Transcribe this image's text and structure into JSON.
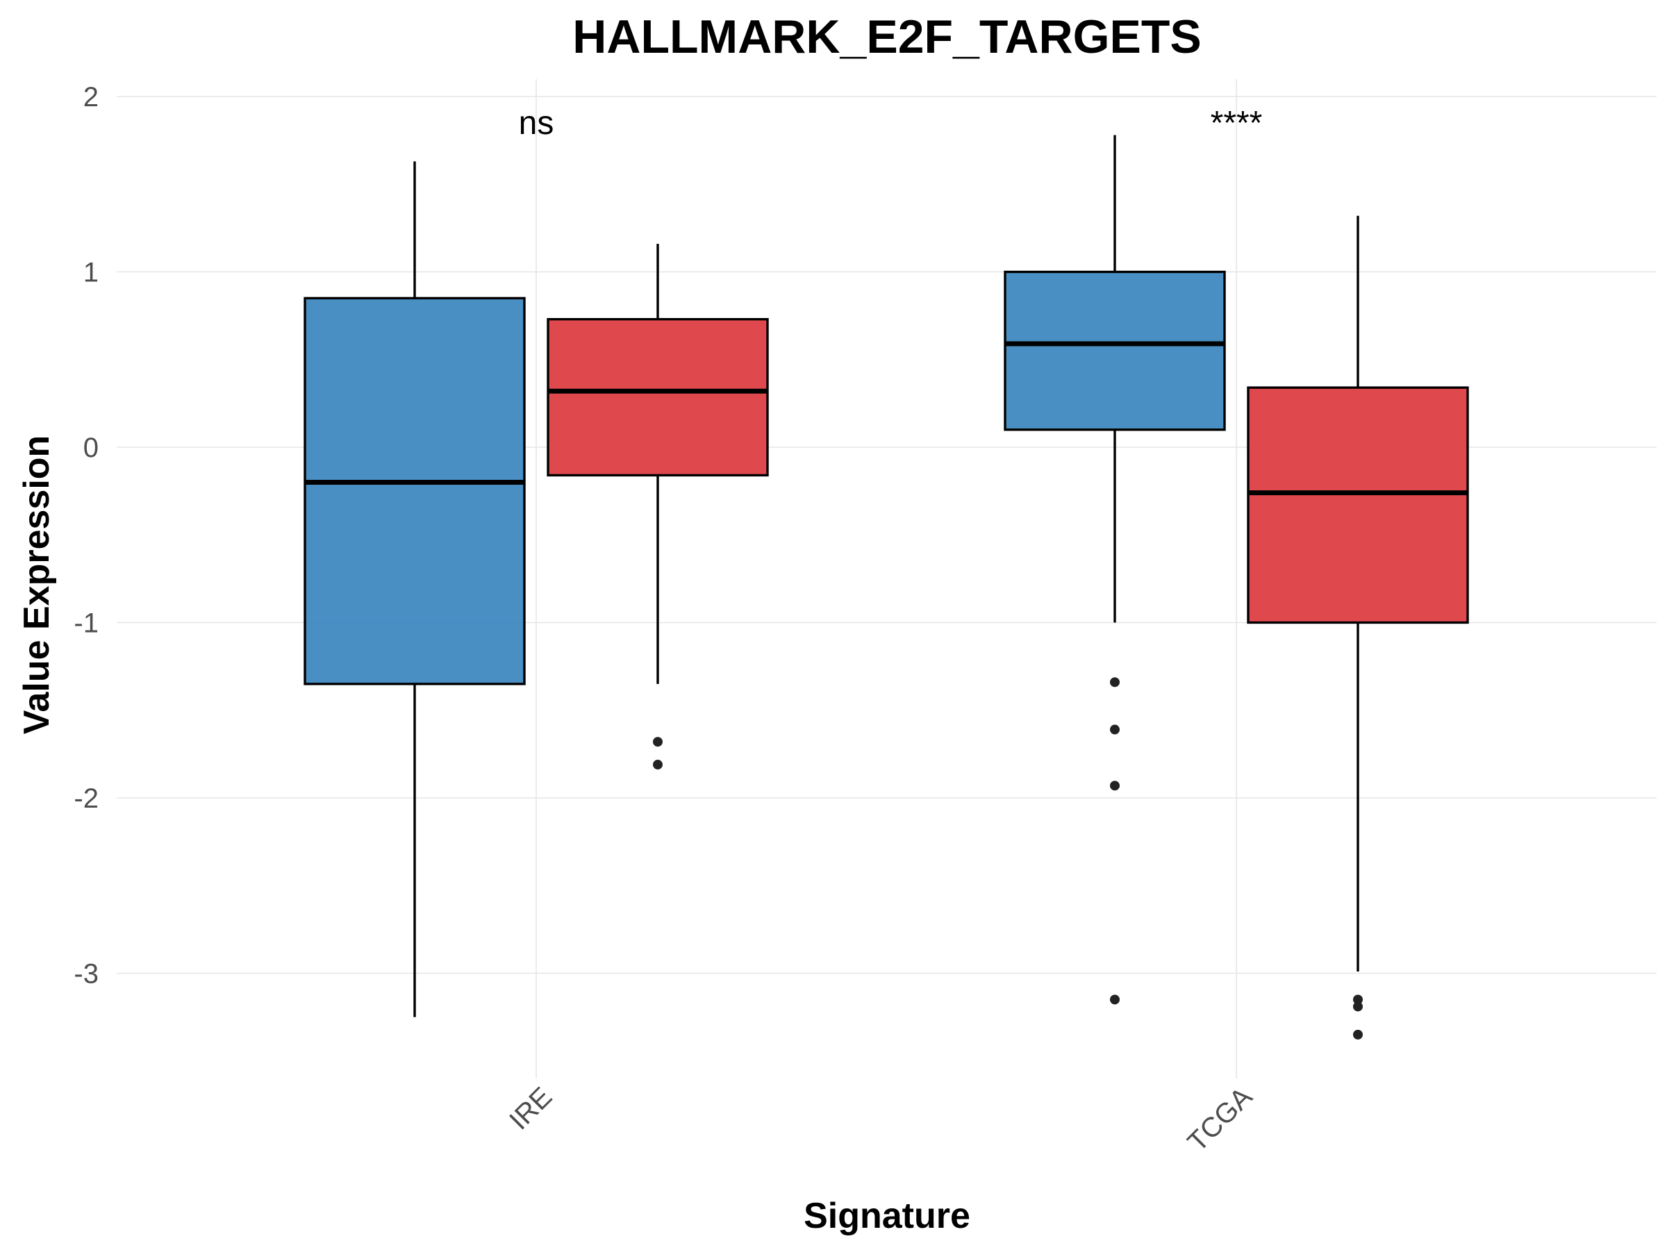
{
  "chart_data": {
    "type": "box",
    "title": "HALLMARK_E2F_TARGETS",
    "xlabel": "Signature",
    "ylabel": "Value Expression",
    "categories": [
      "IRE",
      "TCGA"
    ],
    "y_ticks": [
      2,
      1,
      0,
      -1,
      -2,
      -3
    ],
    "ylim": [
      -3.6,
      2.1
    ],
    "grid": true,
    "legend": "none",
    "groups": [
      {
        "color": "#3a86bf"
      },
      {
        "color": "#dc3a3e"
      }
    ],
    "boxes": [
      {
        "category": "IRE",
        "group": 0,
        "whisker_low": -3.25,
        "q1": -1.35,
        "median": -0.2,
        "q3": 0.85,
        "whisker_high": 1.63,
        "outliers": []
      },
      {
        "category": "IRE",
        "group": 1,
        "whisker_low": -1.35,
        "q1": -0.16,
        "median": 0.32,
        "q3": 0.73,
        "whisker_high": 1.16,
        "outliers": [
          -1.68,
          -1.81
        ]
      },
      {
        "category": "TCGA",
        "group": 0,
        "whisker_low": -1.0,
        "q1": 0.1,
        "median": 0.59,
        "q3": 1.0,
        "whisker_high": 1.78,
        "outliers": [
          -1.34,
          -1.61,
          -1.93,
          -3.15
        ]
      },
      {
        "category": "TCGA",
        "group": 1,
        "whisker_low": -2.99,
        "q1": -1.0,
        "median": -0.26,
        "q3": 0.34,
        "whisker_high": 1.32,
        "outliers": [
          -3.15,
          -3.19,
          -3.35
        ]
      }
    ],
    "annotations": [
      {
        "category": "IRE",
        "text": "ns",
        "y": 1.85
      },
      {
        "category": "TCGA",
        "text": "****",
        "y": 1.85
      }
    ]
  }
}
